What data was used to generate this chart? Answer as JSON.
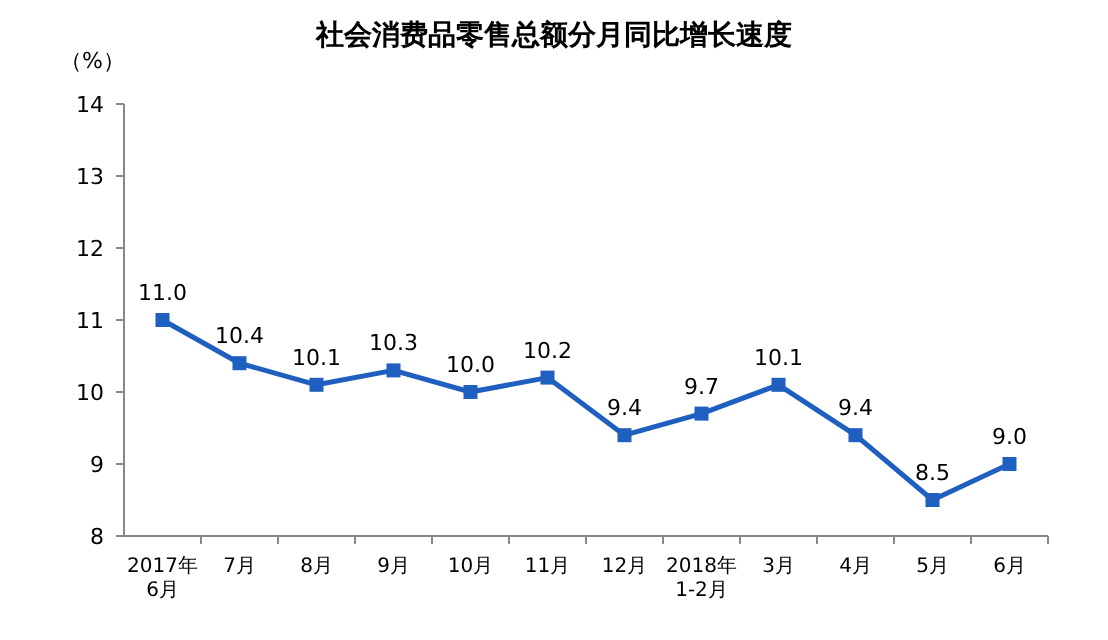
{
  "chart_data": {
    "type": "line",
    "title": "社会消费品零售总额分月同比增长速度",
    "ylabel": "（%）",
    "categories": [
      "2017年\n6月",
      "7月",
      "8月",
      "9月",
      "10月",
      "11月",
      "12月",
      "2018年\n1-2月",
      "3月",
      "4月",
      "5月",
      "6月"
    ],
    "series": [
      {
        "color": "#1f5fbf",
        "values": [
          11.0,
          10.4,
          10.1,
          10.3,
          10.0,
          10.2,
          9.4,
          9.7,
          10.1,
          9.4,
          8.5,
          9.0
        ],
        "value_labels": [
          "11.0",
          "10.4",
          "10.1",
          "10.3",
          "10.0",
          "10.2",
          "9.4",
          "9.7",
          "10.1",
          "9.4",
          "8.5",
          "9.0"
        ]
      }
    ],
    "ylim": [
      8,
      14
    ],
    "yticks": [
      8,
      9,
      10,
      11,
      12,
      13,
      14
    ],
    "marker": "square",
    "line_style": "solid"
  }
}
